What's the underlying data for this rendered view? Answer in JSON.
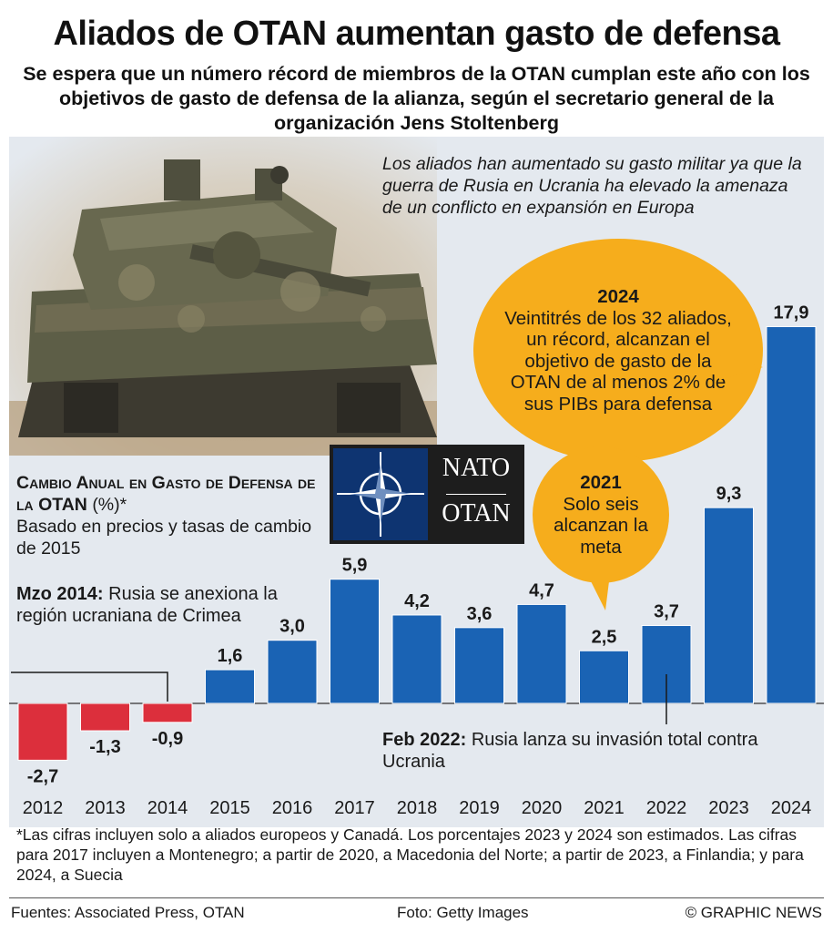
{
  "header": {
    "title": "Aliados de OTAN aumentan gasto de defensa",
    "subtitle": "Se espera que un número récord de miembros de la OTAN cumplan este año con los objetivos de gasto de defensa de la alianza, según el secretario general de la organización Jens Stoltenberg"
  },
  "context_text": "Los aliados han aumentado su gasto militar ya que la guerra de Rusia en Ucrania ha elevado la amenaza de un conflicto en expansión en Europa",
  "bubble_2024": {
    "year": "2024",
    "text": "Veintitrés de los 32 aliados, un récord, alcanzan el objetivo de gasto de la OTAN de al menos 2% de sus PIBs para defensa"
  },
  "bubble_2021": {
    "year": "2021",
    "text": "Solo seis alcanzan la meta"
  },
  "logo": {
    "top": "NATO",
    "bottom": "OTAN"
  },
  "annotations": {
    "crimea_date": "Mzo 2014:",
    "crimea_text": "Rusia se anexiona la región ucraniana de Crimea",
    "invasion_date": "Feb 2022:",
    "invasion_text": "Rusia lanza su invasión total contra Ucrania"
  },
  "chart_data": {
    "type": "bar",
    "title": "Cambio Anual en Gasto de Defensa de la OTAN",
    "unit": "(%)*",
    "subtitle": "Basado en precios y tasas de cambio de 2015",
    "categories": [
      "2012",
      "2013",
      "2014",
      "2015",
      "2016",
      "2017",
      "2018",
      "2019",
      "2020",
      "2021",
      "2022",
      "2023",
      "2024"
    ],
    "values": [
      -2.7,
      -1.3,
      -0.9,
      1.6,
      3.0,
      5.9,
      4.2,
      3.6,
      4.7,
      2.5,
      3.7,
      9.3,
      17.9
    ],
    "value_labels": [
      "-2,7",
      "-1,3",
      "-0,9",
      "1,6",
      "3,0",
      "5,9",
      "4,2",
      "3,6",
      "4,7",
      "2,5",
      "3,7",
      "9,3",
      "17,9"
    ],
    "ylim": [
      -2.7,
      17.9
    ],
    "colors": {
      "positive": "#1a63b4",
      "negative": "#dc2f3c"
    }
  },
  "footnote": "*Las cifras incluyen solo a aliados europeos y Canadá. Los porcentajes 2023 y 2024 son estimados. Las cifras para 2017 incluyen a Montenegro; a partir de 2020, a Macedonia del Norte; a partir de 2023, a Finlandia; y para 2024, a Suecia",
  "footer": {
    "sources": "Fuentes: Associated Press, OTAN",
    "photo": "Foto: Getty Images",
    "credit": "© GRAPHIC NEWS"
  }
}
